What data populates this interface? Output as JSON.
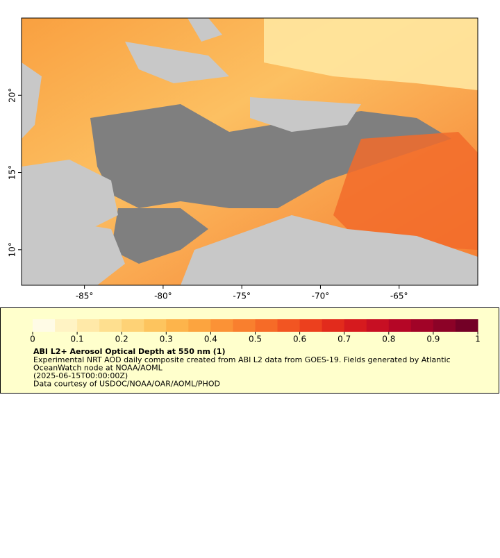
{
  "map": {
    "xlim": [
      -89,
      -60
    ],
    "ylim": [
      7.7,
      25
    ],
    "xticks": [
      {
        "value": -85,
        "label": "-85°"
      },
      {
        "value": -80,
        "label": "-80°"
      },
      {
        "value": -75,
        "label": "-75°"
      },
      {
        "value": -70,
        "label": "-70°"
      },
      {
        "value": -65,
        "label": "-65°"
      }
    ],
    "yticks": [
      {
        "value": 10,
        "label": "10°"
      },
      {
        "value": 15,
        "label": "15°"
      },
      {
        "value": 20,
        "label": "20°"
      }
    ]
  },
  "colorbar": {
    "range": [
      0,
      1
    ],
    "ticks": [
      0,
      0.1,
      0.2,
      0.3,
      0.4,
      0.5,
      0.6,
      0.7,
      0.8,
      0.9,
      1
    ],
    "colors": [
      "#fffbe6",
      "#fff3c4",
      "#ffe9a8",
      "#fedf8f",
      "#fed276",
      "#fdc45e",
      "#fdb44b",
      "#fca43f",
      "#fb9236",
      "#f97f2e",
      "#f66b27",
      "#f25522",
      "#ec401e",
      "#e22b1c",
      "#d61a1e",
      "#c70f23",
      "#b50626",
      "#a10327",
      "#8c0227",
      "#730026"
    ]
  },
  "legend": {
    "title": "ABI L2+ Aerosol Optical Depth at 550 nm (1)",
    "lines": [
      "Experimental NRT AOD daily composite created from ABI L2 data from GOES-19. Fields generated by Atlantic",
      "OceanWatch node at NOAA/AOML",
      "(2025-06-15T00:00:00Z)",
      "Data courtesy of USDOC/NOAA/OAR/AOML/PHOD"
    ]
  }
}
